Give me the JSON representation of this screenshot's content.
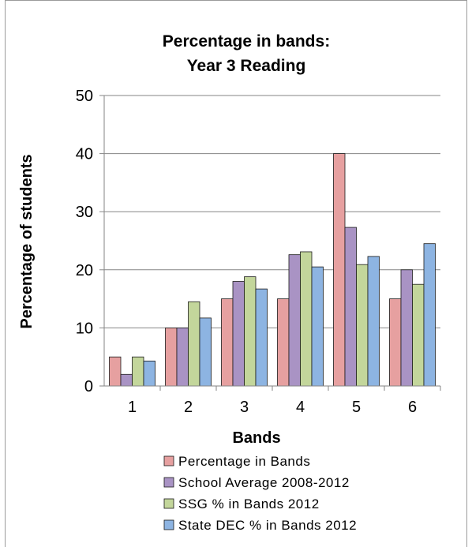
{
  "chart_data": {
    "type": "bar",
    "title_line1": "Percentage in bands:",
    "title_line2": "Year 3 Reading",
    "xlabel": "Bands",
    "ylabel": "Percentage of students",
    "ylim": [
      0,
      50
    ],
    "yticks": [
      "0",
      "10",
      "20",
      "30",
      "40",
      "50"
    ],
    "categories": [
      "1",
      "2",
      "3",
      "4",
      "5",
      "6"
    ],
    "grid": true,
    "legend_position": "bottom",
    "series": [
      {
        "name": "Percentage in Bands",
        "color": "#e6a0a0",
        "values": [
          5,
          10,
          15,
          15,
          40,
          15
        ]
      },
      {
        "name": "School Average 2008-2012",
        "color": "#a993c4",
        "values": [
          2,
          10,
          18,
          22.6,
          27.3,
          20
        ]
      },
      {
        "name": "SSG % in Bands 2012",
        "color": "#c3d69b",
        "values": [
          5,
          14.5,
          18.8,
          23.1,
          20.9,
          17.5
        ]
      },
      {
        "name": "State DEC % in Bands 2012",
        "color": "#8db4e2",
        "values": [
          4.3,
          11.7,
          16.7,
          20.5,
          22.3,
          24.5
        ]
      }
    ]
  }
}
